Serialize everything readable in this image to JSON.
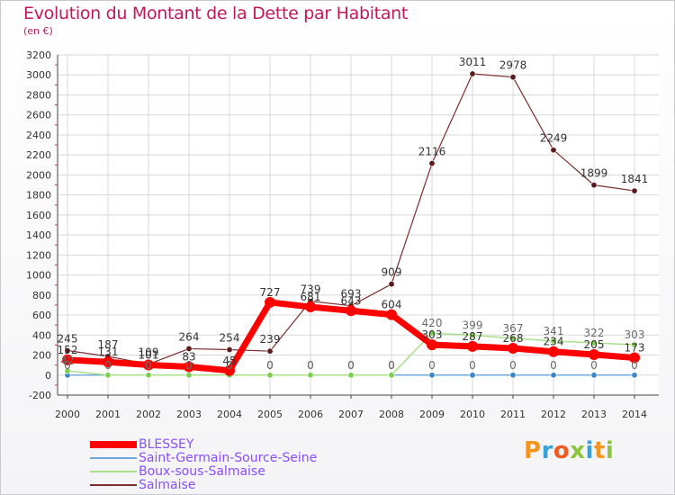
{
  "header": {
    "title": "Evolution du Montant de la Dette par Habitant",
    "subtitle": "(en €)"
  },
  "colors": {
    "title": "#c2185b",
    "legend_text": "#8a4fff",
    "grid": "#d8d8d8",
    "axis": "#444444"
  },
  "chart_data": {
    "type": "line",
    "x": [
      "2000",
      "2001",
      "2002",
      "2003",
      "2004",
      "2005",
      "2006",
      "2007",
      "2008",
      "2009",
      "2010",
      "2011",
      "2012",
      "2013",
      "2014"
    ],
    "ylim": [
      -200,
      3200
    ],
    "yticks": [
      "-200",
      "0",
      "200",
      "400",
      "600",
      "800",
      "1000",
      "1200",
      "1400",
      "1600",
      "1800",
      "2000",
      "2200",
      "2400",
      "2600",
      "2800",
      "3000",
      "3200"
    ],
    "grid": true,
    "legend_position": "bottom-left",
    "series": [
      {
        "name": "BLESSEY",
        "color": "#ff0000",
        "point_color": "#e00000",
        "values": [
          152,
          131,
          101,
          83,
          45,
          727,
          681,
          643,
          604,
          303,
          287,
          268,
          234,
          205,
          173
        ],
        "labels": [
          "152",
          "131",
          "101",
          "83",
          "45",
          "727",
          "681",
          "643",
          "604",
          "303",
          "287",
          "268",
          "234",
          "205",
          "173"
        ]
      },
      {
        "name": "Saint-Germain-Source-Seine",
        "color": "#6fa8dc",
        "point_color": "#3d85c6",
        "values": [
          0,
          0,
          0,
          0,
          0,
          0,
          0,
          0,
          0,
          0,
          0,
          0,
          0,
          0,
          0
        ],
        "labels": [
          "0",
          "0",
          "0",
          "0",
          "0",
          "0",
          "0",
          "0",
          "0",
          "0",
          "0",
          "0",
          "0",
          "0",
          "0"
        ]
      },
      {
        "name": "Boux-sous-Salmaise",
        "color": "#a8e08a",
        "point_color": "#7ccf4f",
        "values": [
          42,
          0,
          0,
          0,
          0,
          0,
          0,
          0,
          0,
          420,
          399,
          367,
          341,
          322,
          303
        ],
        "labels": [
          "42",
          "0",
          "0",
          "0",
          "0",
          "0",
          "0",
          "0",
          "0",
          "420",
          "399",
          "367",
          "341",
          "322",
          "303"
        ]
      },
      {
        "name": "Salmaise",
        "color": "#7b2c2c",
        "point_color": "#5a1a1a",
        "values": [
          245,
          187,
          109,
          264,
          254,
          239,
          739,
          693,
          909,
          2116,
          3011,
          2978,
          2249,
          1899,
          1841
        ],
        "labels": [
          "245",
          "187",
          "109",
          "264",
          "254",
          "239",
          "739",
          "693",
          "909",
          "2116",
          "3011",
          "2978",
          "2249",
          "1899",
          "1841"
        ]
      }
    ]
  },
  "logo": {
    "letters": [
      "P",
      "r",
      "o",
      "x",
      "i",
      "t",
      "i"
    ],
    "colors": [
      "#f7941d",
      "#3aa1d8",
      "#f15a24",
      "#8cc63f",
      "#3aa1d8",
      "#f7941d",
      "#8cc63f"
    ]
  }
}
